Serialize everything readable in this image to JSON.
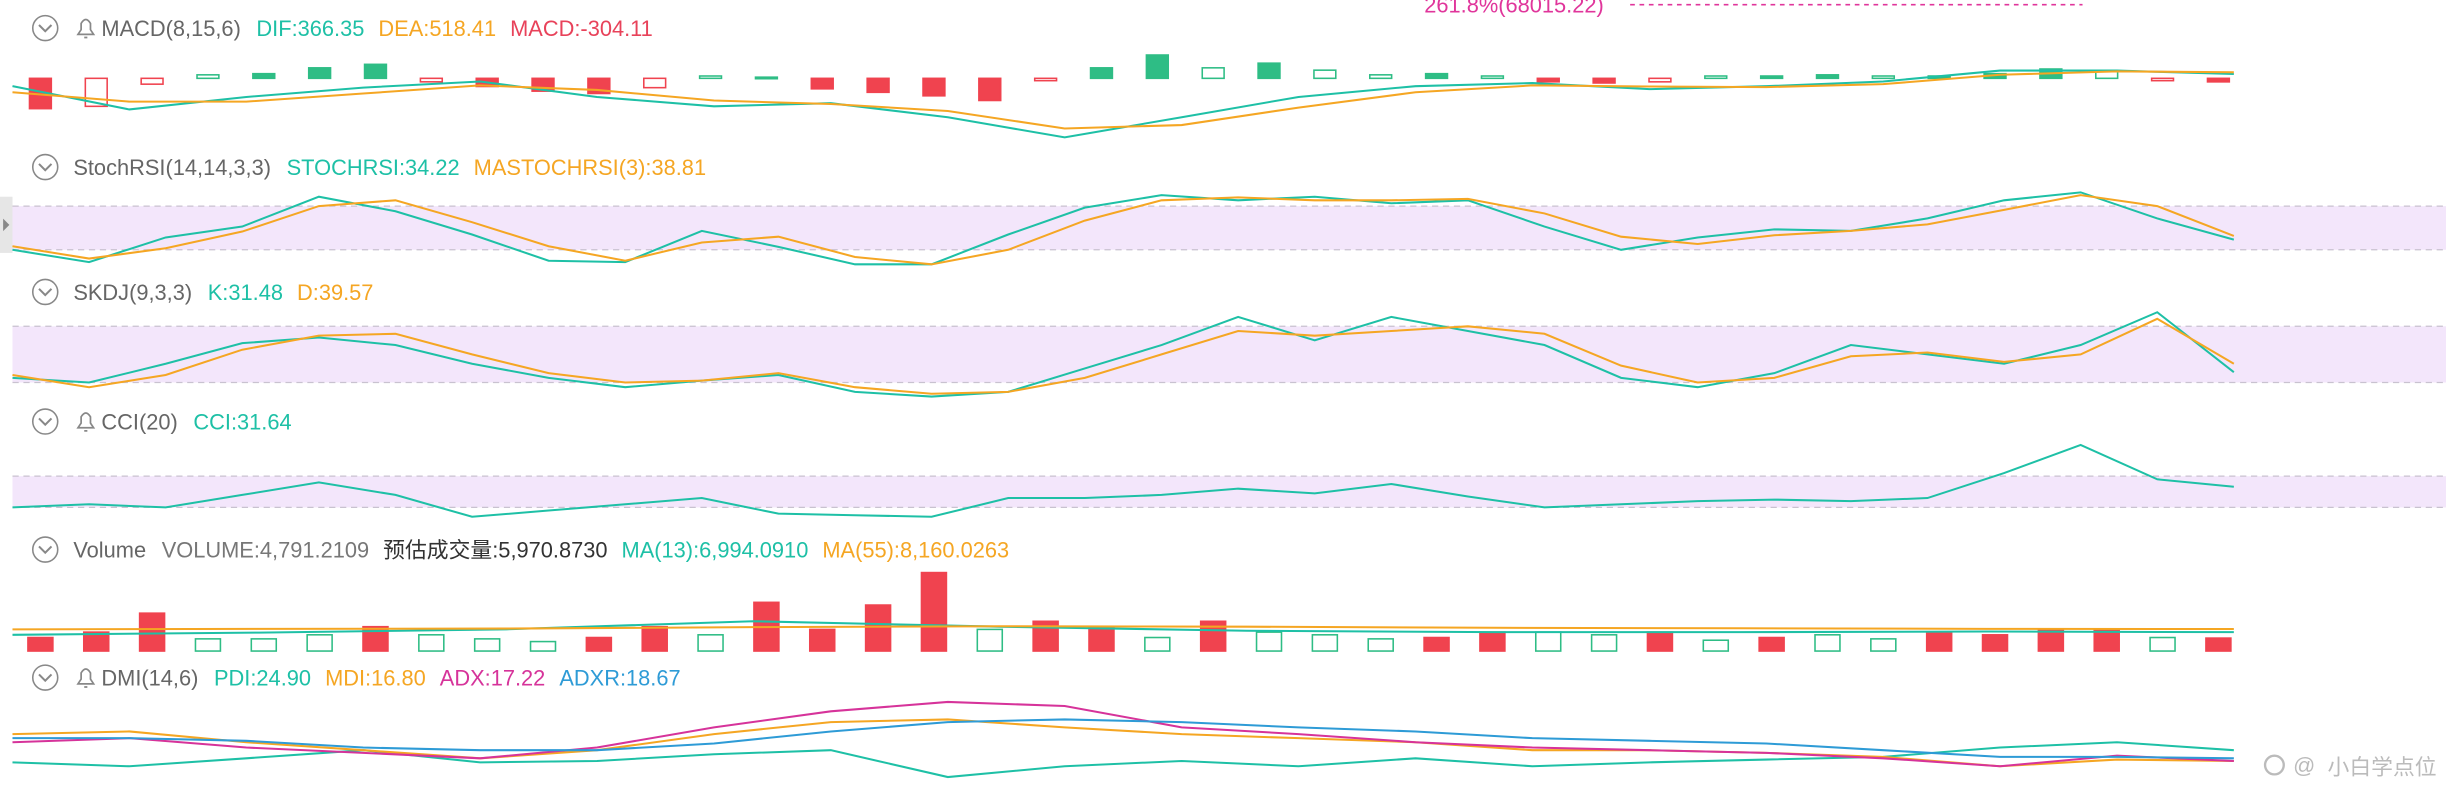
{
  "fib_label": "261.8%(68015.22)",
  "watermark": "小白学点位",
  "panels": [
    {
      "type": "macd",
      "name": "MACD(8,15,6)",
      "alert": true,
      "labels": [
        {
          "text": "DIF:366.35",
          "color": "#1ec0a6"
        },
        {
          "text": "DEA:518.41",
          "color": "#f5a623"
        },
        {
          "text": "MACD:-304.11",
          "color": "#e8425a"
        }
      ],
      "ylim": [
        -6000,
        2700
      ],
      "histogram": {
        "up_color": "#2ebd85",
        "down_color": "#f0434f",
        "values": [
          -2600,
          -2400,
          -500,
          300,
          400,
          900,
          1200,
          -300,
          -700,
          -1100,
          -1300,
          -800,
          200,
          100,
          -900,
          -1200,
          -1500,
          -1900,
          -200,
          900,
          2000,
          900,
          1300,
          700,
          300,
          400,
          200,
          -300,
          -400,
          -300,
          200,
          200,
          300,
          200,
          200,
          400,
          800,
          600,
          -200,
          -304
        ]
      },
      "series": [
        {
          "color": "#1ec0a6",
          "values": [
            -667,
            -2667,
            -1600,
            -800,
            -267,
            -1600,
            -2400,
            -2133,
            -3333,
            -5067,
            -3333,
            -1600,
            -667,
            -400,
            -933,
            -667,
            -267,
            667,
            667,
            366
          ]
        },
        {
          "color": "#f5a623",
          "values": [
            -1200,
            -2000,
            -2000,
            -1300,
            -600,
            -1000,
            -1900,
            -2200,
            -2800,
            -4300,
            -4000,
            -2500,
            -1200,
            -600,
            -700,
            -750,
            -500,
            300,
            600,
            518
          ]
        }
      ]
    },
    {
      "type": "oscillator",
      "name": "StochRSI(14,14,3,3)",
      "alert": false,
      "labels": [
        {
          "text": "STOCHRSI:34.22",
          "color": "#1ec0a6"
        },
        {
          "text": "MASTOCHRSI(3):38.81",
          "color": "#f5a623"
        }
      ],
      "ylim": [
        0,
        100
      ],
      "bands": [
        20,
        80
      ],
      "band_color": "#f3e6fb",
      "series": [
        {
          "color": "#1ec0a6",
          "values": [
            20,
            3,
            37,
            52,
            93,
            73,
            41,
            5,
            3,
            46,
            24,
            0,
            0,
            41,
            78,
            95,
            88,
            93,
            84,
            88,
            52,
            20,
            37,
            48,
            46,
            63,
            88,
            99,
            63,
            34
          ]
        },
        {
          "color": "#f5a623",
          "values": [
            25,
            8,
            22,
            45,
            80,
            88,
            58,
            25,
            5,
            30,
            38,
            10,
            0,
            20,
            60,
            88,
            92,
            88,
            88,
            90,
            70,
            38,
            28,
            40,
            46,
            55,
            75,
            95,
            80,
            39
          ]
        }
      ]
    },
    {
      "type": "oscillator",
      "name": "SKDJ(9,3,3)",
      "alert": false,
      "labels": [
        {
          "text": "K:31.48",
          "color": "#1ec0a6"
        },
        {
          "text": "D:39.57",
          "color": "#f5a623"
        }
      ],
      "ylim": [
        0,
        100
      ],
      "bands": [
        20,
        80
      ],
      "band_color": "#f3e6fb",
      "series": [
        {
          "color": "#1ec0a6",
          "values": [
            25,
            20,
            40,
            62,
            68,
            60,
            40,
            25,
            15,
            22,
            28,
            10,
            5,
            10,
            35,
            60,
            90,
            65,
            90,
            75,
            60,
            25,
            15,
            30,
            60,
            50,
            40,
            60,
            95,
            31
          ]
        },
        {
          "color": "#f5a623",
          "values": [
            28,
            15,
            28,
            55,
            70,
            72,
            50,
            30,
            20,
            22,
            30,
            15,
            8,
            10,
            25,
            50,
            75,
            70,
            75,
            80,
            72,
            38,
            20,
            25,
            48,
            52,
            42,
            50,
            88,
            40
          ]
        }
      ]
    },
    {
      "type": "oscillator",
      "name": "CCI(20)",
      "alert": true,
      "labels": [
        {
          "text": "CCI:31.64",
          "color": "#1ec0a6"
        }
      ],
      "ylim": [
        -200,
        350
      ],
      "bands": [
        -100,
        100
      ],
      "band_color": "#f3e6fb",
      "series": [
        {
          "color": "#1ec0a6",
          "values": [
            -100,
            -80,
            -100,
            -20,
            60,
            -20,
            -160,
            -120,
            -80,
            -40,
            -140,
            -150,
            -160,
            -40,
            -40,
            -20,
            20,
            -10,
            50,
            -30,
            -100,
            -80,
            -60,
            -50,
            -60,
            -40,
            120,
            300,
            80,
            32
          ]
        }
      ]
    },
    {
      "type": "volume",
      "name": "Volume",
      "alert": false,
      "labels": [
        {
          "text": "VOLUME:4,791.2109",
          "color": "#777777"
        },
        {
          "text": "预估成交量:5,970.8730",
          "color": "#333333"
        },
        {
          "text": "MA(13):6,994.0910",
          "color": "#1ec0a6"
        },
        {
          "text": "MA(55):8,160.0263",
          "color": "#f5a623"
        }
      ],
      "ylim": [
        0,
        30000
      ],
      "bars": {
        "up_color": "#2ebd85",
        "values": [
          5000,
          7000,
          14000,
          4500,
          4500,
          6000,
          9000,
          6000,
          4500,
          3500,
          5000,
          9000,
          6000,
          18000,
          8000,
          17000,
          29000,
          8000,
          11000,
          9000,
          5000,
          11000,
          7000,
          6000,
          4500,
          5000,
          7000,
          7000,
          6000,
          7000,
          4000,
          5000,
          6000,
          4500,
          7000,
          6000,
          8000,
          8000,
          5000,
          4791
        ],
        "colors": [
          "#f0434f",
          "#f0434f",
          "#f0434f",
          "#2ebd85",
          "#2ebd85",
          "#2ebd85",
          "#f0434f",
          "#2ebd85",
          "#2ebd85",
          "#2ebd85",
          "#f0434f",
          "#f0434f",
          "#2ebd85",
          "#f0434f",
          "#f0434f",
          "#f0434f",
          "#f0434f",
          "#2ebd85",
          "#f0434f",
          "#f0434f",
          "#2ebd85",
          "#f0434f",
          "#2ebd85",
          "#2ebd85",
          "#2ebd85",
          "#f0434f",
          "#f0434f",
          "#2ebd85",
          "#2ebd85",
          "#f0434f",
          "#2ebd85",
          "#f0434f",
          "#2ebd85",
          "#2ebd85",
          "#f0434f",
          "#f0434f",
          "#f0434f",
          "#f0434f",
          "#2ebd85",
          "#f0434f"
        ]
      },
      "series": [
        {
          "color": "#1ec0a6",
          "values": [
            6000,
            6800,
            8000,
            11000,
            9000,
            7500,
            7000,
            7000,
            7200,
            6994
          ]
        },
        {
          "color": "#f5a623",
          "values": [
            8000,
            8200,
            8300,
            8800,
            9200,
            9000,
            8600,
            8400,
            8200,
            8160
          ]
        }
      ]
    },
    {
      "type": "oscillator",
      "name": "DMI(14,6)",
      "alert": true,
      "labels": [
        {
          "text": "PDI:24.90",
          "color": "#1ec0a6"
        },
        {
          "text": "MDI:16.80",
          "color": "#f5a623"
        },
        {
          "text": "ADX:17.22",
          "color": "#d6339a"
        },
        {
          "text": "ADXR:18.67",
          "color": "#2e9bd6"
        }
      ],
      "ylim": [
        0,
        64
      ],
      "series": [
        {
          "color": "#1ec0a6",
          "values": [
            16,
            13,
            19,
            25,
            16,
            17,
            22,
            25,
            5,
            13,
            17,
            13,
            19,
            13,
            16,
            18,
            20,
            27,
            31,
            25
          ]
        },
        {
          "color": "#f5a623",
          "values": [
            37,
            39,
            31,
            25,
            19,
            25,
            37,
            46,
            48,
            42,
            37,
            34,
            31,
            25,
            25,
            23,
            20,
            13,
            18,
            17
          ]
        },
        {
          "color": "#d6339a",
          "values": [
            31,
            34,
            27,
            23,
            19,
            27,
            42,
            54,
            61,
            58,
            42,
            37,
            31,
            27,
            25,
            23,
            19,
            13,
            21,
            17
          ]
        },
        {
          "color": "#2e9bd6",
          "values": [
            34,
            34,
            32,
            27,
            25,
            25,
            30,
            39,
            46,
            48,
            46,
            42,
            39,
            34,
            32,
            30,
            25,
            20,
            20,
            19
          ]
        }
      ]
    }
  ]
}
